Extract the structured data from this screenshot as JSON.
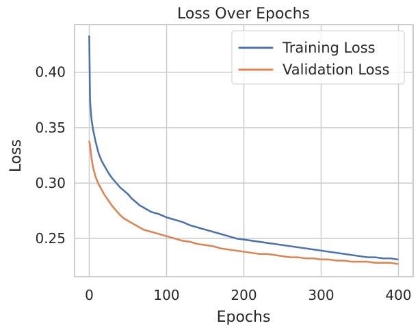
{
  "chart_data": {
    "type": "line",
    "title": "Loss Over Epochs",
    "xlabel": "Epochs",
    "ylabel": "Loss",
    "xlim": [
      -19,
      419
    ],
    "ylim": [
      0.2155,
      0.443
    ],
    "xticks": [
      0,
      100,
      200,
      300,
      400
    ],
    "xtick_labels": [
      "0",
      "100",
      "200",
      "300",
      "400"
    ],
    "yticks": [
      0.25,
      0.3,
      0.35,
      0.4
    ],
    "ytick_labels": [
      "0.25",
      "0.30",
      "0.35",
      "0.40"
    ],
    "grid": true,
    "legend_position": "top-right",
    "series": [
      {
        "name": "Training Loss",
        "color": "#4c72b0",
        "points": [
          [
            0,
            0.4325
          ],
          [
            1,
            0.375
          ],
          [
            2,
            0.365
          ],
          [
            3,
            0.357
          ],
          [
            5,
            0.348
          ],
          [
            8,
            0.338
          ],
          [
            12,
            0.327
          ],
          [
            16,
            0.32
          ],
          [
            20,
            0.315
          ],
          [
            25,
            0.309
          ],
          [
            30,
            0.304
          ],
          [
            35,
            0.3
          ],
          [
            40,
            0.296
          ],
          [
            45,
            0.293
          ],
          [
            50,
            0.29
          ],
          [
            55,
            0.286
          ],
          [
            60,
            0.283
          ],
          [
            65,
            0.28
          ],
          [
            70,
            0.278
          ],
          [
            75,
            0.276
          ],
          [
            80,
            0.274
          ],
          [
            90,
            0.272
          ],
          [
            100,
            0.269
          ],
          [
            110,
            0.267
          ],
          [
            120,
            0.265
          ],
          [
            130,
            0.262
          ],
          [
            140,
            0.26
          ],
          [
            150,
            0.258
          ],
          [
            160,
            0.256
          ],
          [
            170,
            0.254
          ],
          [
            180,
            0.252
          ],
          [
            190,
            0.25
          ],
          [
            200,
            0.249
          ],
          [
            210,
            0.248
          ],
          [
            220,
            0.247
          ],
          [
            230,
            0.246
          ],
          [
            240,
            0.245
          ],
          [
            250,
            0.244
          ],
          [
            260,
            0.243
          ],
          [
            270,
            0.242
          ],
          [
            280,
            0.241
          ],
          [
            290,
            0.24
          ],
          [
            300,
            0.239
          ],
          [
            310,
            0.238
          ],
          [
            320,
            0.237
          ],
          [
            330,
            0.236
          ],
          [
            340,
            0.235
          ],
          [
            350,
            0.234
          ],
          [
            360,
            0.233
          ],
          [
            370,
            0.233
          ],
          [
            380,
            0.232
          ],
          [
            390,
            0.232
          ],
          [
            399,
            0.231
          ]
        ]
      },
      {
        "name": "Validation Loss",
        "color": "#dd8452",
        "points": [
          [
            0,
            0.3375
          ],
          [
            1,
            0.334
          ],
          [
            2,
            0.328
          ],
          [
            3,
            0.322
          ],
          [
            5,
            0.314
          ],
          [
            8,
            0.306
          ],
          [
            12,
            0.299
          ],
          [
            16,
            0.294
          ],
          [
            20,
            0.289
          ],
          [
            25,
            0.284
          ],
          [
            30,
            0.279
          ],
          [
            35,
            0.275
          ],
          [
            40,
            0.271
          ],
          [
            45,
            0.268
          ],
          [
            50,
            0.266
          ],
          [
            55,
            0.264
          ],
          [
            60,
            0.262
          ],
          [
            65,
            0.26
          ],
          [
            70,
            0.258
          ],
          [
            75,
            0.257
          ],
          [
            80,
            0.256
          ],
          [
            90,
            0.254
          ],
          [
            100,
            0.252
          ],
          [
            110,
            0.25
          ],
          [
            120,
            0.248
          ],
          [
            130,
            0.247
          ],
          [
            140,
            0.245
          ],
          [
            150,
            0.244
          ],
          [
            160,
            0.243
          ],
          [
            170,
            0.241
          ],
          [
            180,
            0.24
          ],
          [
            190,
            0.239
          ],
          [
            200,
            0.238
          ],
          [
            210,
            0.237
          ],
          [
            220,
            0.236
          ],
          [
            230,
            0.236
          ],
          [
            240,
            0.235
          ],
          [
            250,
            0.234
          ],
          [
            260,
            0.233
          ],
          [
            270,
            0.233
          ],
          [
            280,
            0.232
          ],
          [
            290,
            0.232
          ],
          [
            300,
            0.231
          ],
          [
            310,
            0.231
          ],
          [
            320,
            0.23
          ],
          [
            330,
            0.23
          ],
          [
            340,
            0.229
          ],
          [
            350,
            0.229
          ],
          [
            360,
            0.229
          ],
          [
            370,
            0.228
          ],
          [
            380,
            0.228
          ],
          [
            390,
            0.228
          ],
          [
            399,
            0.227
          ]
        ]
      }
    ]
  }
}
